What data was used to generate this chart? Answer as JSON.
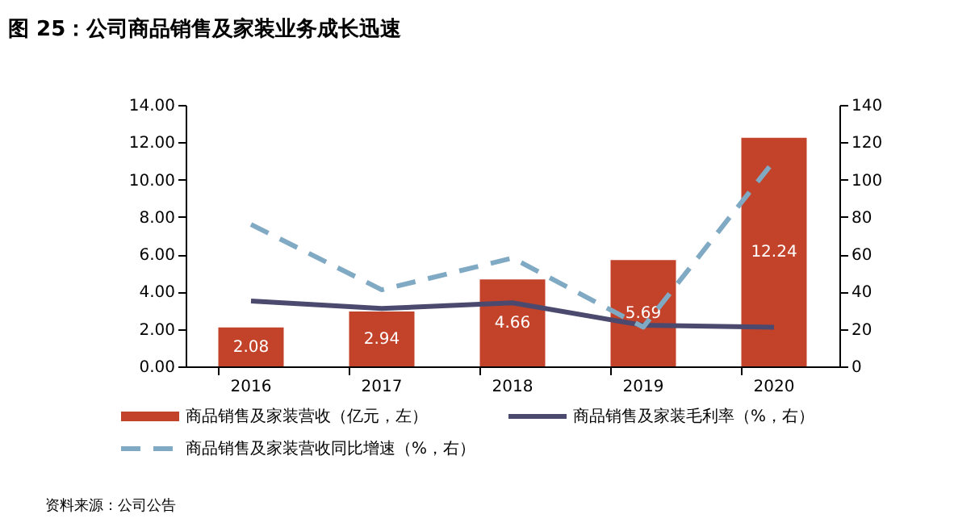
{
  "chart_data": {
    "type": "bar",
    "title": "图 25：公司商品销售及家装业务成长迅速",
    "categories": [
      "2016",
      "2017",
      "2018",
      "2019",
      "2020"
    ],
    "series": [
      {
        "name": "商品销售及家装营收（亿元，左）",
        "color": "#c3432a",
        "values": [
          2.08,
          2.94,
          4.66,
          5.69,
          12.24
        ],
        "value_labels": [
          "2.08",
          "2.94",
          "4.66",
          "5.69",
          "12.24"
        ]
      },
      {
        "name": "商品销售及家装毛利率（%，右）",
        "type": "line",
        "axis": "y2",
        "line_style": "solid",
        "color": "#4b4a6e",
        "values": [
          35,
          31,
          34,
          22,
          21
        ]
      },
      {
        "name": "商品销售及家装营收同比增速（%，右）",
        "type": "line",
        "axis": "y2",
        "line_style": "dashed",
        "color": "#80aac4",
        "values": [
          76,
          41,
          58,
          21,
          110
        ]
      }
    ],
    "ylim": [
      0,
      14
    ],
    "yticks": [
      {
        "value": 0,
        "label": "0.00"
      },
      {
        "value": 2,
        "label": "2.00"
      },
      {
        "value": 4,
        "label": "4.00"
      },
      {
        "value": 6,
        "label": "6.00"
      },
      {
        "value": 8,
        "label": "8.00"
      },
      {
        "value": 10,
        "label": "10.00"
      },
      {
        "value": 12,
        "label": "12.00"
      },
      {
        "value": 14,
        "label": "14.00"
      }
    ],
    "y2lim": [
      0,
      140
    ],
    "y2ticks": [
      0,
      20,
      40,
      60,
      80,
      100,
      120,
      140
    ],
    "grid": false,
    "legend": "bottom",
    "annotations": [
      "资料来源：公司公告"
    ]
  }
}
